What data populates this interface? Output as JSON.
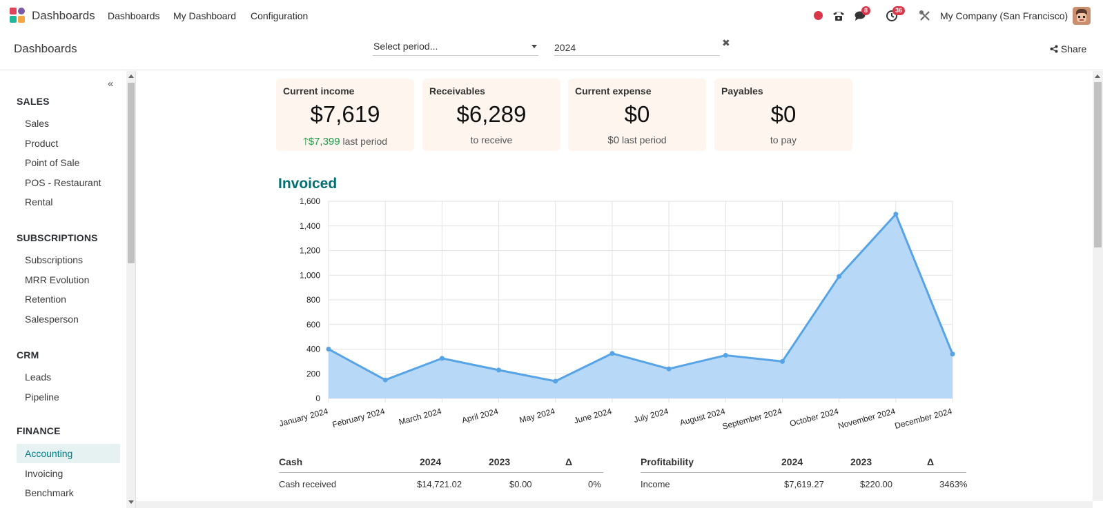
{
  "topnav": {
    "app_name": "Dashboards",
    "menu": [
      "Dashboards",
      "My Dashboard",
      "Configuration"
    ],
    "messages_count": "8",
    "activities_count": "36",
    "company": "My Company (San Francisco)"
  },
  "control": {
    "breadcrumb": "Dashboards",
    "period_placeholder": "Select period...",
    "year_value": "2024",
    "share_label": "Share"
  },
  "sidebar": {
    "sections": [
      {
        "title": "SALES",
        "items": [
          "Sales",
          "Product",
          "Point of Sale",
          "POS - Restaurant",
          "Rental"
        ]
      },
      {
        "title": "SUBSCRIPTIONS",
        "items": [
          "Subscriptions",
          "MRR Evolution",
          "Retention",
          "Salesperson"
        ]
      },
      {
        "title": "CRM",
        "items": [
          "Leads",
          "Pipeline"
        ]
      },
      {
        "title": "FINANCE",
        "items": [
          "Accounting",
          "Invoicing",
          "Benchmark"
        ]
      }
    ],
    "active_item": "Accounting"
  },
  "kpis": [
    {
      "title": "Current income",
      "value": "$7,619",
      "sub_value": "$7,399",
      "sub_text": " last period",
      "trend": "up"
    },
    {
      "title": "Receivables",
      "value": "$6,289",
      "sub_text": "to receive"
    },
    {
      "title": "Current expense",
      "value": "$0",
      "sub_value": "$0",
      "sub_text": " last period"
    },
    {
      "title": "Payables",
      "value": "$0",
      "sub_text": "to pay"
    }
  ],
  "chart_title": "Invoiced",
  "chart_data": {
    "type": "area",
    "title": "Invoiced",
    "categories": [
      "January 2024",
      "February 2024",
      "March 2024",
      "April 2024",
      "May 2024",
      "June 2024",
      "July 2024",
      "August 2024",
      "September 2024",
      "October 2024",
      "November 2024",
      "December 2024"
    ],
    "values": [
      400,
      150,
      325,
      230,
      140,
      365,
      240,
      350,
      300,
      990,
      1495,
      360
    ],
    "ylim": [
      0,
      1600
    ],
    "yticks": [
      "0",
      "200",
      "400",
      "600",
      "800",
      "1,000",
      "1,200",
      "1,400",
      "1,600"
    ],
    "grid": true,
    "colors": {
      "line": "#56a3e6",
      "fill": "#b7d8f7"
    }
  },
  "cash_table": {
    "headers": [
      "Cash",
      "2024",
      "2023",
      "Δ"
    ],
    "rows": [
      [
        "Cash received",
        "$14,721.02",
        "$0.00",
        "0%"
      ]
    ]
  },
  "profit_table": {
    "headers": [
      "Profitability",
      "2024",
      "2023",
      "Δ"
    ],
    "rows": [
      [
        "Income",
        "$7,619.27",
        "$220.00",
        "3463%"
      ]
    ]
  }
}
